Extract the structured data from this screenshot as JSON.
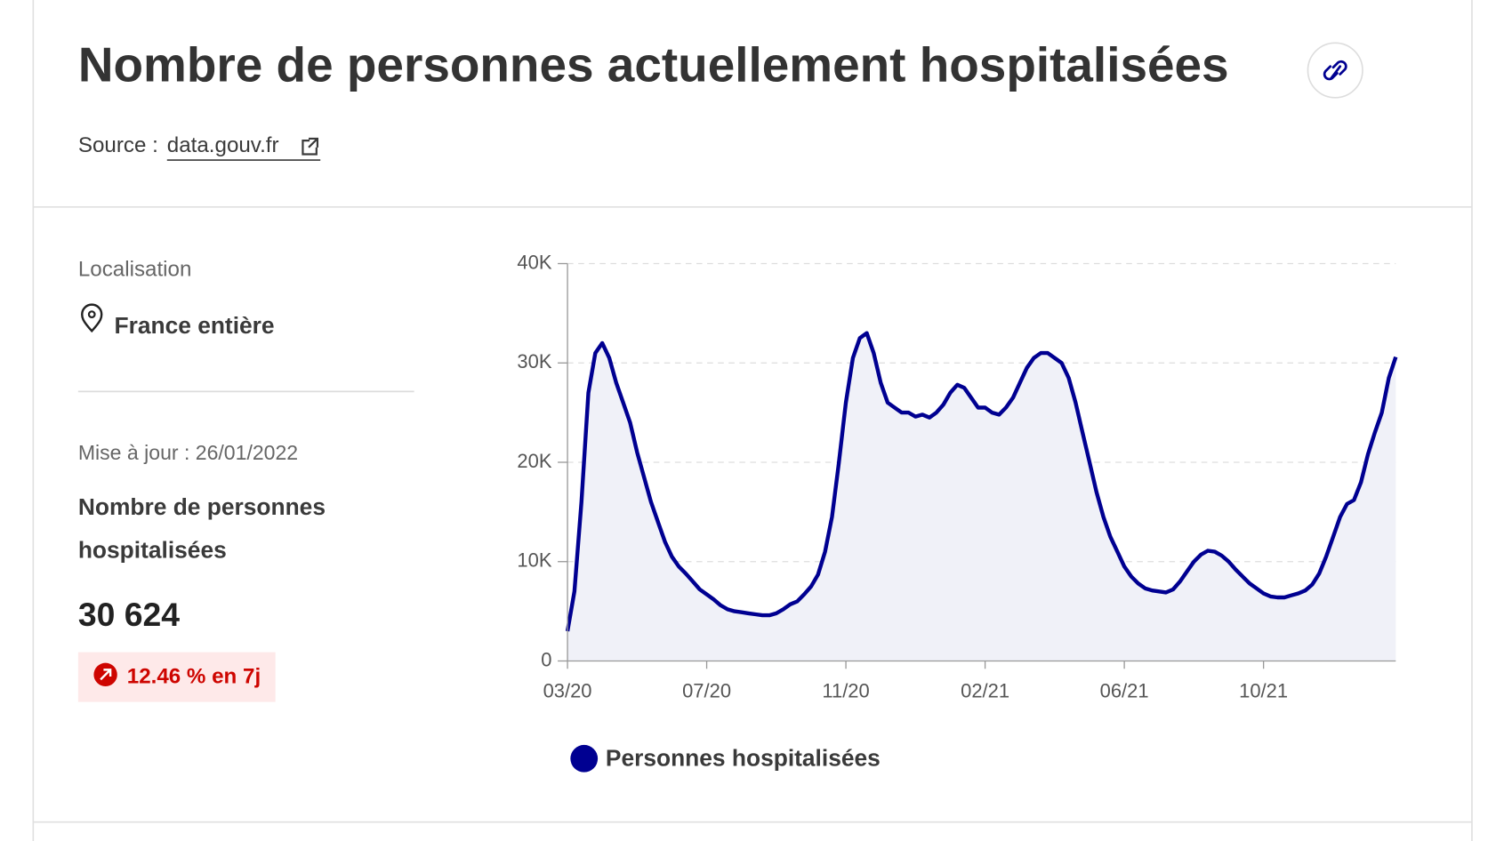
{
  "header": {
    "title": "Nombre de personnes actuellement hospitalisées",
    "source_label": "Source :",
    "source_link": "data.gouv.fr"
  },
  "sidebar": {
    "location_label": "Localisation",
    "location_value": "France entière",
    "update_label": "Mise à jour : 26/01/2022",
    "metric_label_lines": [
      "Nombre de personnes",
      "hospitalisées"
    ],
    "metric_value": "30 624",
    "evolution": "12.46 % en 7j"
  },
  "chart_data": {
    "type": "line",
    "categories": [
      "03/20",
      null,
      null,
      null,
      null,
      null,
      null,
      null,
      null,
      null,
      null,
      null,
      null,
      null,
      null,
      null,
      null,
      null,
      null,
      null,
      "07/20",
      null,
      null,
      null,
      null,
      null,
      null,
      null,
      null,
      null,
      null,
      null,
      null,
      null,
      null,
      null,
      null,
      null,
      null,
      null,
      "11/20",
      null,
      null,
      null,
      null,
      null,
      null,
      null,
      null,
      null,
      null,
      null,
      null,
      null,
      null,
      null,
      null,
      null,
      null,
      null,
      "02/21",
      null,
      null,
      null,
      null,
      null,
      null,
      null,
      null,
      null,
      null,
      null,
      null,
      null,
      null,
      null,
      null,
      null,
      null,
      null,
      "06/21",
      null,
      null,
      null,
      null,
      null,
      null,
      null,
      null,
      null,
      null,
      null,
      null,
      null,
      null,
      null,
      null,
      null,
      null,
      null,
      "10/21",
      null,
      null,
      null,
      null,
      null,
      null,
      null,
      null,
      null,
      null,
      null,
      null,
      null,
      null,
      null,
      null,
      null,
      null,
      null
    ],
    "series": [
      {
        "name": "Personnes hospitalisées",
        "color": "#000091",
        "area_color": "#f0f1f8",
        "values": [
          3000,
          7000,
          16000,
          27000,
          31000,
          32000,
          30500,
          28000,
          26000,
          24000,
          21000,
          18500,
          16000,
          14000,
          12000,
          10500,
          9500,
          8800,
          8000,
          7200,
          6700,
          6200,
          5600,
          5200,
          5000,
          4900,
          4800,
          4700,
          4600,
          4600,
          4800,
          5200,
          5700,
          6000,
          6700,
          7500,
          8700,
          11000,
          14500,
          20000,
          26000,
          30500,
          32500,
          33000,
          31000,
          28000,
          26000,
          25500,
          25000,
          25000,
          24600,
          24800,
          24500,
          25000,
          25800,
          27000,
          27800,
          27500,
          26500,
          25500,
          25500,
          25000,
          24800,
          25500,
          26500,
          28000,
          29500,
          30500,
          31000,
          31000,
          30500,
          30000,
          28500,
          26000,
          23000,
          20000,
          17000,
          14500,
          12500,
          11000,
          9500,
          8500,
          7800,
          7300,
          7100,
          7000,
          6900,
          7200,
          8000,
          9000,
          10000,
          10700,
          11100,
          11000,
          10600,
          10000,
          9200,
          8500,
          7800,
          7300,
          6800,
          6500,
          6400,
          6400,
          6600,
          6800,
          7100,
          7700,
          8800,
          10500,
          12500,
          14500,
          15800,
          16200,
          18000,
          20800,
          23000,
          25000,
          28500,
          30600
        ]
      }
    ],
    "ylim": [
      0,
      40000
    ],
    "yticks": [
      0,
      {
        "value": 10000,
        "label": "10K"
      },
      {
        "value": 20000,
        "label": "20K"
      },
      {
        "value": 30000,
        "label": "30K"
      },
      {
        "value": 40000,
        "label": "40K"
      }
    ],
    "grid": true
  }
}
